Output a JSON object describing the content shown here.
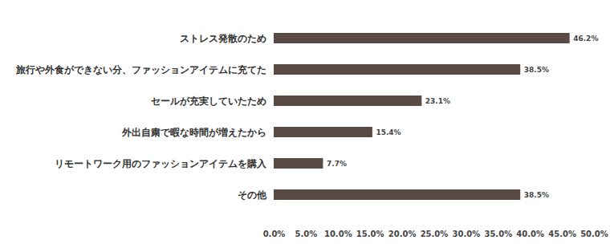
{
  "chart_data": {
    "type": "bar",
    "orientation": "horizontal",
    "categories": [
      "ストレス発散のため",
      "旅行や外食ができない分、ファッションアイテムに充てた",
      "セールが充実していたため",
      "外出自粛で暇な時間が増えたから",
      "リモートワーク用のファッションアイテムを購入",
      "その他"
    ],
    "values": [
      46.2,
      38.5,
      23.1,
      15.4,
      7.7,
      38.5
    ],
    "value_labels": [
      "46.2%",
      "38.5%",
      "23.1%",
      "15.4%",
      "7.7%",
      "38.5%"
    ],
    "color": "#5a4a44",
    "xlim": [
      0,
      50
    ],
    "xticks": [
      {
        "value": 0,
        "label": "0.0%"
      },
      {
        "value": 5,
        "label": "5.0%"
      },
      {
        "value": 10,
        "label": "10.0%"
      },
      {
        "value": 15,
        "label": "15.0%"
      },
      {
        "value": 20,
        "label": "20.0%"
      },
      {
        "value": 25,
        "label": "25.0%"
      },
      {
        "value": 30,
        "label": "30.0%"
      },
      {
        "value": 35,
        "label": "35.0%"
      },
      {
        "value": 40,
        "label": "40.0%"
      },
      {
        "value": 45,
        "label": "45.0%"
      },
      {
        "value": 50,
        "label": "50.0%"
      }
    ],
    "grid": false,
    "data_labels": true
  }
}
